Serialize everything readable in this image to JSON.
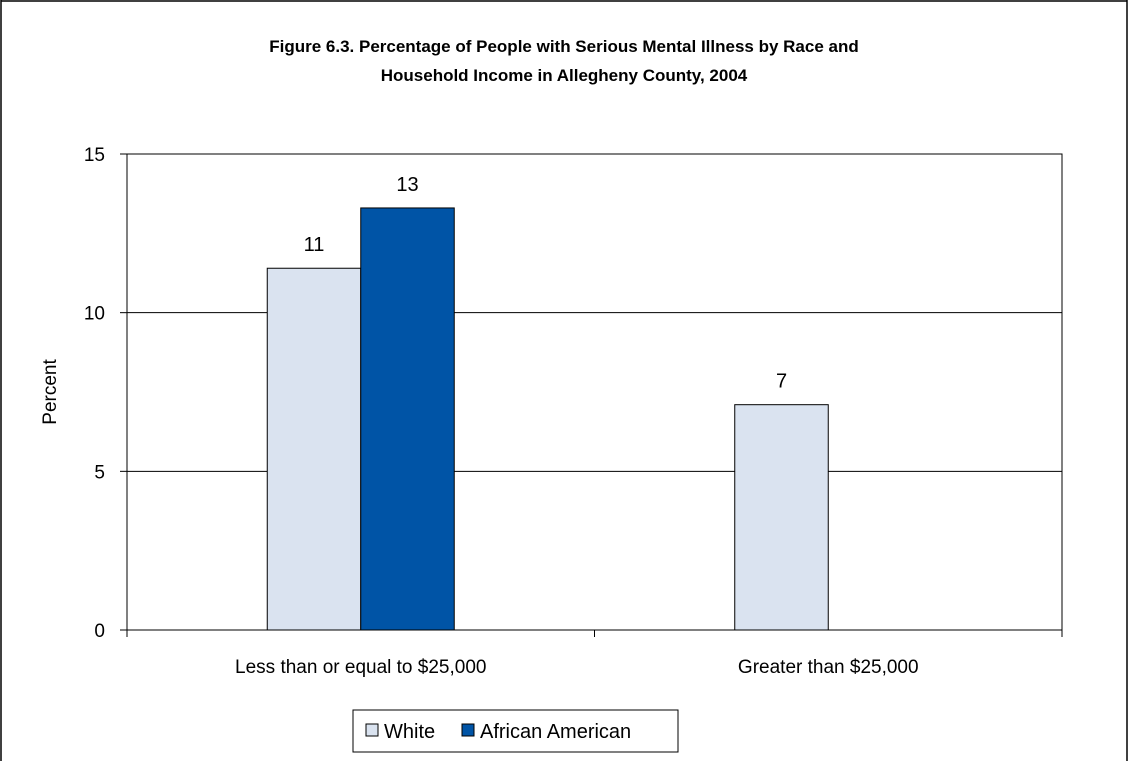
{
  "chart_data": {
    "type": "bar",
    "title_line1": "Figure 6.3. Percentage of People with Serious Mental Illness by Race and",
    "title_line2": "Household Income in Allegheny County, 2004",
    "ylabel": "Percent",
    "xlabel": "",
    "ylim": [
      0,
      15
    ],
    "yticks": [
      0,
      5,
      10,
      15
    ],
    "grid": true,
    "legend_position": "bottom",
    "categories": [
      "Less than or equal to $25,000",
      "Greater than $25,000"
    ],
    "series": [
      {
        "name": "White",
        "color": "#dae3f0",
        "values": [
          11.4,
          7.1
        ],
        "labels": [
          "11",
          "7"
        ]
      },
      {
        "name": "African American",
        "color": "#0054a6",
        "values": [
          13.3,
          null
        ],
        "labels": [
          "13",
          ""
        ]
      }
    ]
  }
}
